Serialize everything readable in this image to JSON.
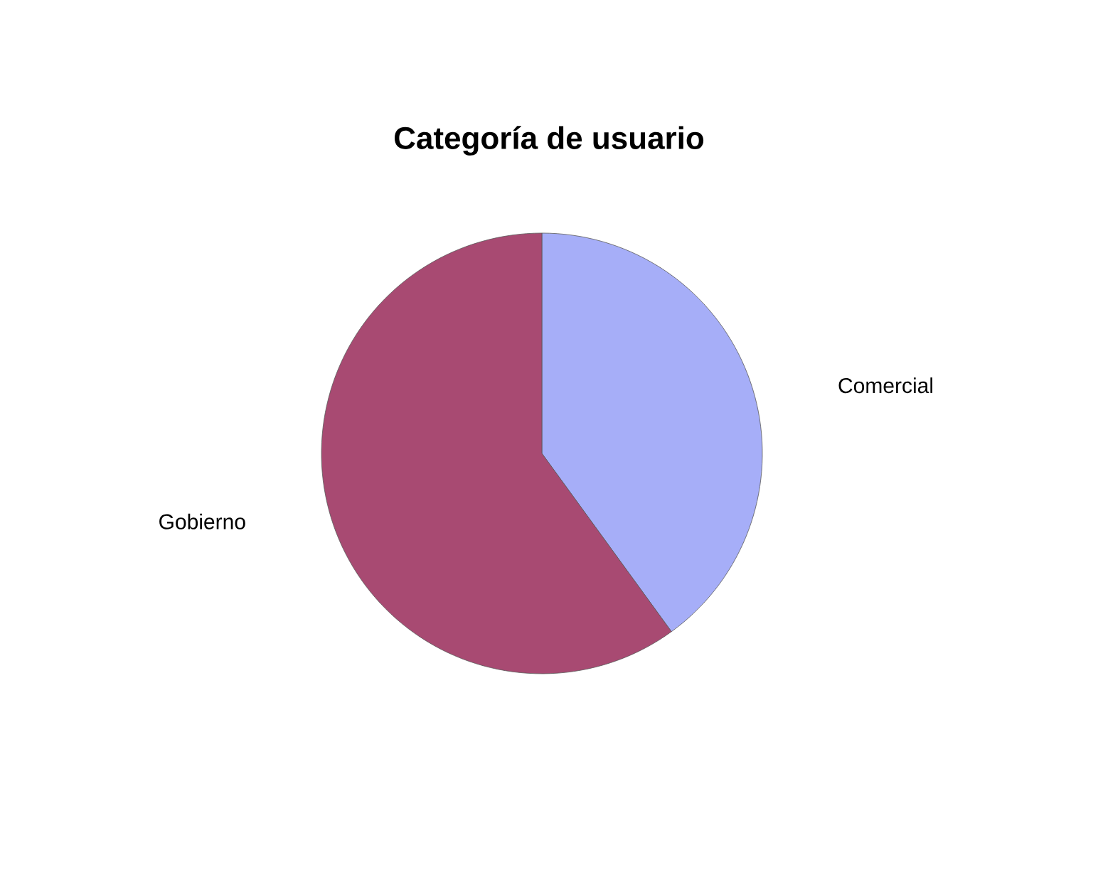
{
  "chart_data": {
    "type": "pie",
    "title": "Categoría de usuario",
    "categories": [
      "Comercial",
      "Gobierno"
    ],
    "values": [
      40,
      60
    ],
    "colors": [
      "#a6aef8",
      "#a84a72"
    ]
  }
}
